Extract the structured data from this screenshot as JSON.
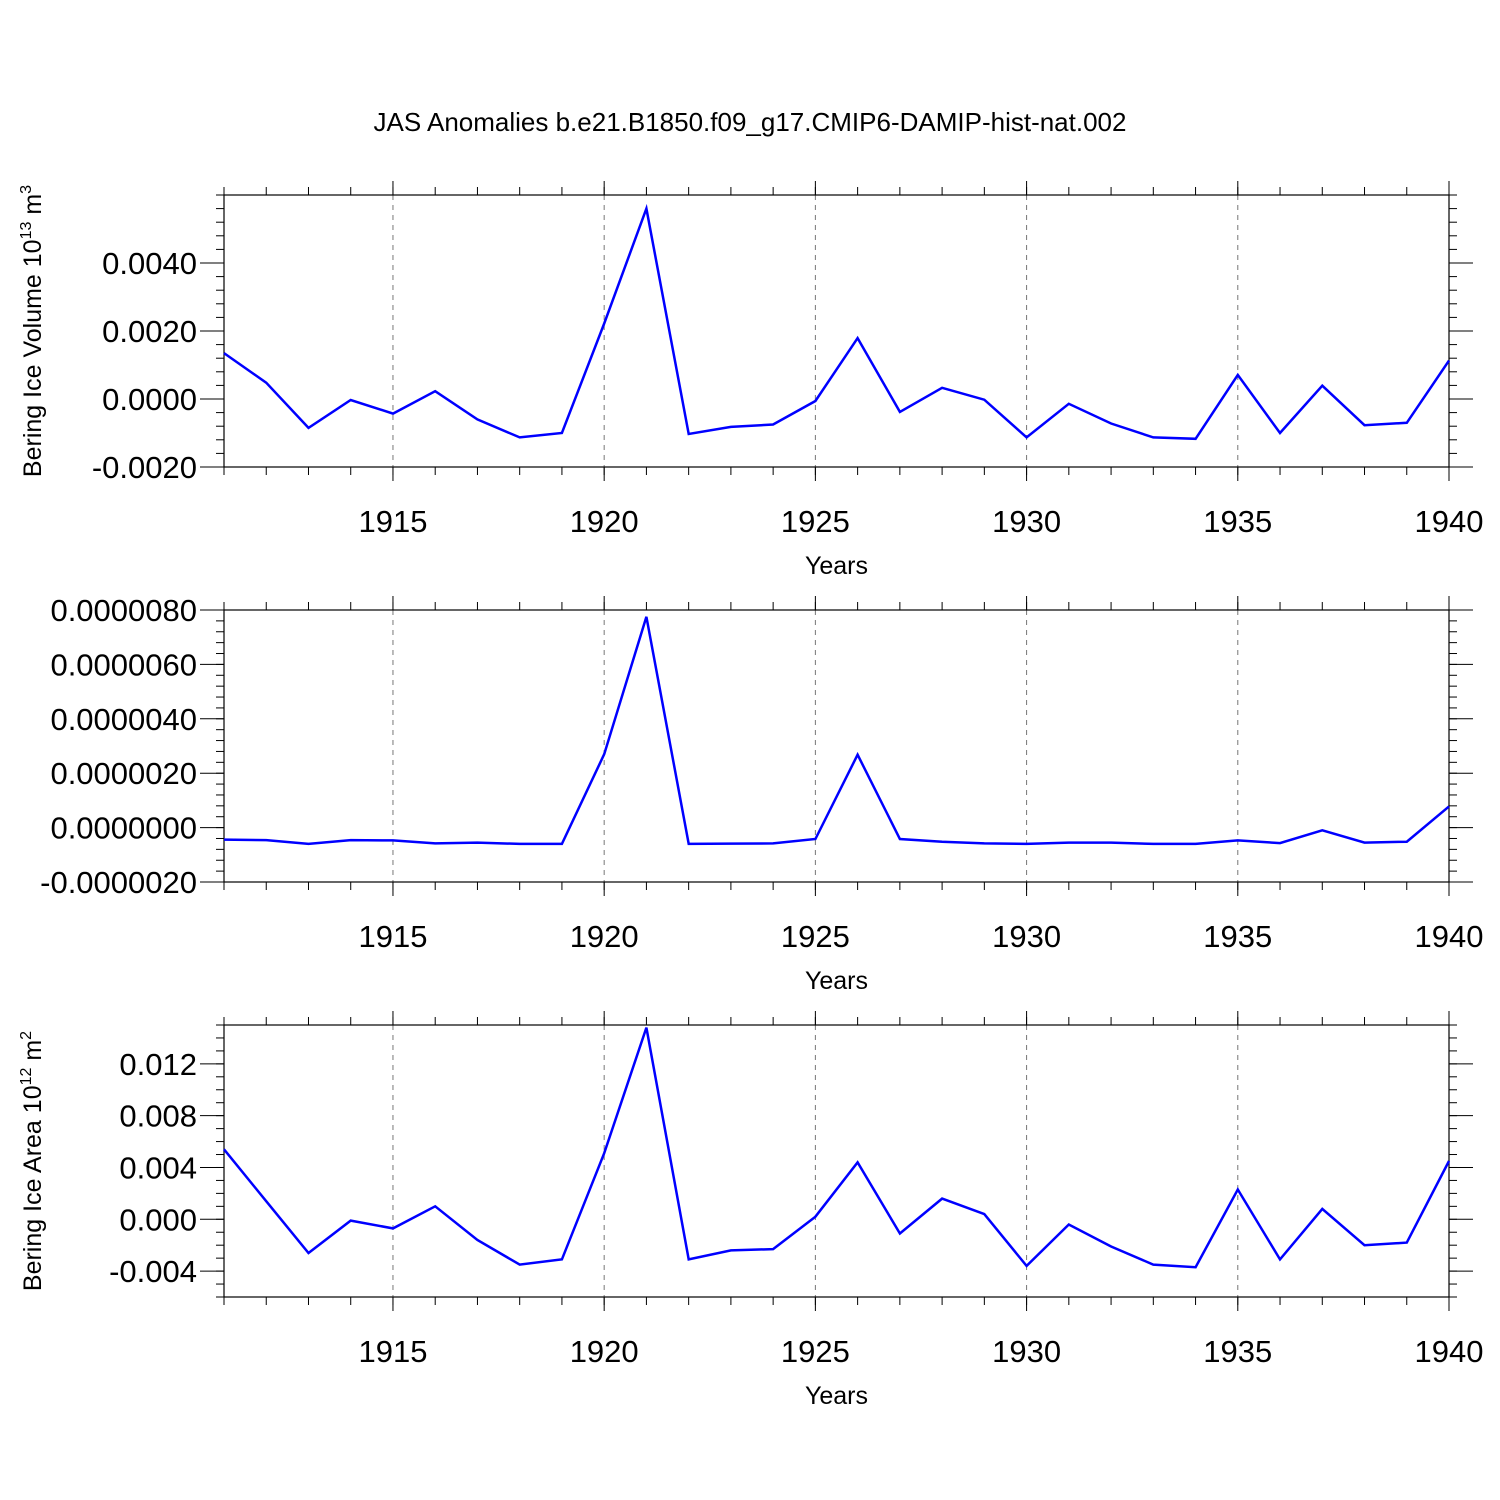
{
  "chart_data": {
    "title": "JAS Anomalies b.e21.B1850.f09_g17.CMIP6-DAMIP-hist-nat.002",
    "line_color": "#0000ff",
    "panels": [
      {
        "type": "line",
        "ylabel_main": "Bering Ice Volume 10",
        "ylabel_sup": "13",
        "ylabel_unit": " m",
        "ylabel_unit_sup": "3",
        "xlabel": "Years",
        "xlim": [
          1911,
          1940
        ],
        "ylim": [
          -0.002,
          0.006
        ],
        "yticks": [
          -0.002,
          0.0,
          0.002,
          0.004
        ],
        "ytick_labels": [
          "-0.0020",
          "0.0000",
          "0.0020",
          "0.0040"
        ],
        "yminor_step": 0.0004,
        "xticks": [
          1915,
          1920,
          1925,
          1930,
          1935,
          1940
        ],
        "xtick_labels": [
          "1915",
          "1920",
          "1925",
          "1930",
          "1935",
          "1940"
        ],
        "x": [
          1911,
          1912,
          1913,
          1914,
          1915,
          1916,
          1917,
          1918,
          1919,
          1920,
          1921,
          1922,
          1923,
          1924,
          1925,
          1926,
          1927,
          1928,
          1929,
          1930,
          1931,
          1932,
          1933,
          1934,
          1935,
          1936,
          1937,
          1938,
          1939,
          1940
        ],
        "values": [
          0.00135,
          0.00048,
          -0.00085,
          -3e-05,
          -0.00043,
          0.00023,
          -0.0006,
          -0.00113,
          -0.001,
          0.00222,
          0.0056,
          -0.00103,
          -0.00082,
          -0.00075,
          -6e-05,
          0.00179,
          -0.00038,
          0.00033,
          -2e-05,
          -0.00113,
          -0.00014,
          -0.00072,
          -0.00113,
          -0.00117,
          0.00071,
          -0.001,
          0.00039,
          -0.00077,
          -0.0007,
          0.00113
        ]
      },
      {
        "type": "line",
        "ylabel_main": "",
        "ylabel_sup": "",
        "ylabel_unit": "",
        "ylabel_unit_sup": "",
        "xlabel": "Years",
        "xlim": [
          1911,
          1940
        ],
        "ylim": [
          -2e-06,
          8e-06
        ],
        "yticks": [
          -2e-06,
          0.0,
          2e-06,
          4e-06,
          6e-06,
          8e-06
        ],
        "ytick_labels": [
          "-0.0000020",
          "0.0000000",
          "0.0000020",
          "0.0000040",
          "0.0000060",
          "0.0000080"
        ],
        "yminor_step": 4e-07,
        "xticks": [
          1915,
          1920,
          1925,
          1930,
          1935,
          1940
        ],
        "xtick_labels": [
          "1915",
          "1920",
          "1925",
          "1930",
          "1935",
          "1940"
        ],
        "x": [
          1911,
          1912,
          1913,
          1914,
          1915,
          1916,
          1917,
          1918,
          1919,
          1920,
          1921,
          1922,
          1923,
          1924,
          1925,
          1926,
          1927,
          1928,
          1929,
          1930,
          1931,
          1932,
          1933,
          1934,
          1935,
          1936,
          1937,
          1938,
          1939,
          1940
        ],
        "values": [
          -4.4e-07,
          -4.6e-07,
          -6e-07,
          -4.6e-07,
          -4.7e-07,
          -5.8e-07,
          -5.5e-07,
          -6e-07,
          -6e-07,
          2.7e-06,
          7.75e-06,
          -6e-07,
          -5.9e-07,
          -5.8e-07,
          -4.2e-07,
          2.68e-06,
          -4.2e-07,
          -5.2e-07,
          -5.8e-07,
          -6e-07,
          -5.5e-07,
          -5.5e-07,
          -6e-07,
          -6e-07,
          -4.7e-07,
          -5.7e-07,
          -1e-07,
          -5.5e-07,
          -5.2e-07,
          7.8e-07
        ]
      },
      {
        "type": "line",
        "ylabel_main": "Bering Ice Area 10",
        "ylabel_sup": "12",
        "ylabel_unit": " m",
        "ylabel_unit_sup": "2",
        "xlabel": "Years",
        "xlim": [
          1911,
          1940
        ],
        "ylim": [
          -0.006,
          0.015
        ],
        "yticks": [
          -0.004,
          0.0,
          0.004,
          0.008,
          0.012
        ],
        "ytick_labels": [
          "-0.004",
          "0.000",
          "0.004",
          "0.008",
          "0.012"
        ],
        "yminor_step": 0.001,
        "xticks": [
          1915,
          1920,
          1925,
          1930,
          1935,
          1940
        ],
        "xtick_labels": [
          "1915",
          "1920",
          "1925",
          "1930",
          "1935",
          "1940"
        ],
        "x": [
          1911,
          1912,
          1913,
          1914,
          1915,
          1916,
          1917,
          1918,
          1919,
          1920,
          1921,
          1922,
          1923,
          1924,
          1925,
          1926,
          1927,
          1928,
          1929,
          1930,
          1931,
          1932,
          1933,
          1934,
          1935,
          1936,
          1937,
          1938,
          1939,
          1940
        ],
        "values": [
          0.0054,
          0.0014,
          -0.0026,
          -0.0001,
          -0.0007,
          0.001,
          -0.0016,
          -0.0035,
          -0.0031,
          0.0051,
          0.0148,
          -0.0031,
          -0.0024,
          -0.0023,
          0.0002,
          0.0044,
          -0.0011,
          0.0016,
          0.0004,
          -0.0036,
          -0.0004,
          -0.0021,
          -0.0035,
          -0.0037,
          0.0023,
          -0.0031,
          0.0008,
          -0.002,
          -0.0018,
          0.0045
        ]
      }
    ]
  }
}
